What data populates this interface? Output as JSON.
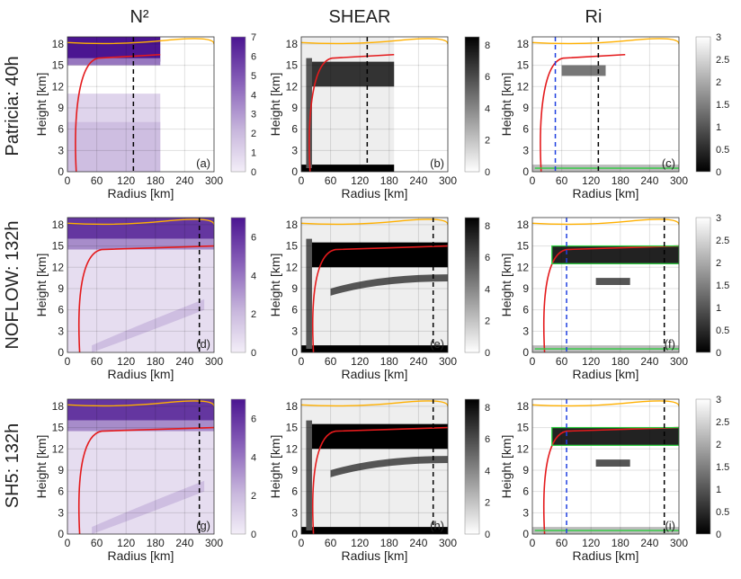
{
  "column_titles": [
    "N²",
    "SHEAR",
    "Ri"
  ],
  "row_titles": [
    "Patricia: 40h",
    "NOFLOW: 132h",
    "SH5: 132h"
  ],
  "panel_letters": [
    "(a)",
    "(b)",
    "(c)",
    "(d)",
    "(e)",
    "(f)",
    "(g)",
    "(h)",
    "(i)"
  ],
  "colors": {
    "n2_low": "#f3eef8",
    "n2_high": "#4b1591",
    "shear_low": "#ffffff",
    "shear_high": "#000000",
    "ri_low": "#000000",
    "ri_high": "#ffffff",
    "red_contour": "#e41a1c",
    "orange_contour": "#ffb000",
    "green_contour": "#2ecc40",
    "black_dash": "#000000",
    "blue_dash": "#1f3fe0"
  },
  "chart_data": [
    {
      "panel": "(a)",
      "type": "heatmap",
      "field": "N²",
      "row": "Patricia: 40h",
      "xlabel": "Radius [km]",
      "ylabel": "Height [km]",
      "x_ticks": [
        "0",
        "60",
        "120",
        "180",
        "240",
        "300"
      ],
      "y_ticks": [
        "0",
        "3",
        "6",
        "9",
        "12",
        "15",
        "18"
      ],
      "xlim": [
        0,
        300
      ],
      "ylim": [
        0,
        19
      ],
      "grid": true,
      "colorbar": {
        "ticks": [
          "0",
          "1",
          "2",
          "3",
          "4",
          "5",
          "6",
          "7"
        ],
        "range": [
          0,
          7
        ]
      },
      "data_extent_km": 190,
      "dashed_lines_km": [
        {
          "x": 135,
          "color": "black"
        }
      ]
    },
    {
      "panel": "(b)",
      "type": "heatmap",
      "field": "SHEAR",
      "row": "Patricia: 40h",
      "xlabel": "Radius [km]",
      "ylabel": "Height [km]",
      "x_ticks": [
        "0",
        "60",
        "120",
        "180",
        "240",
        "300"
      ],
      "y_ticks": [
        "0",
        "3",
        "6",
        "9",
        "12",
        "15",
        "18"
      ],
      "xlim": [
        0,
        300
      ],
      "ylim": [
        0,
        19
      ],
      "grid": true,
      "colorbar": {
        "ticks": [
          "0",
          "2",
          "4",
          "6",
          "8"
        ],
        "range": [
          0,
          8.5
        ]
      },
      "data_extent_km": 190,
      "dashed_lines_km": [
        {
          "x": 135,
          "color": "black"
        }
      ]
    },
    {
      "panel": "(c)",
      "type": "heatmap",
      "field": "Ri",
      "row": "Patricia: 40h",
      "xlabel": "Radius [km]",
      "ylabel": "Height [km]",
      "x_ticks": [
        "0",
        "60",
        "120",
        "180",
        "240",
        "300"
      ],
      "y_ticks": [
        "0",
        "3",
        "6",
        "9",
        "12",
        "15",
        "18"
      ],
      "xlim": [
        0,
        300
      ],
      "ylim": [
        0,
        19
      ],
      "grid": true,
      "colorbar": {
        "ticks": [
          "0",
          "0.5",
          "1",
          "1.5",
          "2",
          "2.5",
          "3"
        ],
        "range": [
          0,
          3
        ]
      },
      "data_extent_km": 190,
      "dashed_lines_km": [
        {
          "x": 47,
          "color": "blue"
        },
        {
          "x": 135,
          "color": "black"
        }
      ]
    },
    {
      "panel": "(d)",
      "type": "heatmap",
      "field": "N²",
      "row": "NOFLOW: 132h",
      "xlabel": "Radius [km]",
      "ylabel": "Height [km]",
      "x_ticks": [
        "0",
        "60",
        "120",
        "180",
        "240",
        "300"
      ],
      "y_ticks": [
        "0",
        "3",
        "6",
        "9",
        "12",
        "15",
        "18"
      ],
      "xlim": [
        0,
        300
      ],
      "ylim": [
        0,
        19
      ],
      "grid": true,
      "colorbar": {
        "ticks": [
          "0",
          "2",
          "4",
          "6"
        ],
        "range": [
          0,
          7
        ]
      },
      "data_extent_km": 300,
      "dashed_lines_km": [
        {
          "x": 270,
          "color": "black"
        }
      ]
    },
    {
      "panel": "(e)",
      "type": "heatmap",
      "field": "SHEAR",
      "row": "NOFLOW: 132h",
      "xlabel": "Radius [km]",
      "ylabel": "Height [km]",
      "x_ticks": [
        "0",
        "60",
        "120",
        "180",
        "240",
        "300"
      ],
      "y_ticks": [
        "0",
        "3",
        "6",
        "9",
        "12",
        "15",
        "18"
      ],
      "xlim": [
        0,
        300
      ],
      "ylim": [
        0,
        19
      ],
      "grid": true,
      "colorbar": {
        "ticks": [
          "0",
          "2",
          "4",
          "6",
          "8"
        ],
        "range": [
          0,
          8.5
        ]
      },
      "data_extent_km": 300,
      "dashed_lines_km": [
        {
          "x": 270,
          "color": "black"
        }
      ]
    },
    {
      "panel": "(f)",
      "type": "heatmap",
      "field": "Ri",
      "row": "NOFLOW: 132h",
      "xlabel": "Radius [km]",
      "ylabel": "Height [km]",
      "x_ticks": [
        "0",
        "60",
        "120",
        "180",
        "240",
        "300"
      ],
      "y_ticks": [
        "0",
        "3",
        "6",
        "9",
        "12",
        "15",
        "18"
      ],
      "xlim": [
        0,
        300
      ],
      "ylim": [
        0,
        19
      ],
      "grid": true,
      "colorbar": {
        "ticks": [
          "0",
          "0.5",
          "1",
          "1.5",
          "2",
          "2.5",
          "3"
        ],
        "range": [
          0,
          3
        ]
      },
      "data_extent_km": 300,
      "dashed_lines_km": [
        {
          "x": 70,
          "color": "blue"
        },
        {
          "x": 270,
          "color": "black"
        }
      ]
    },
    {
      "panel": "(g)",
      "type": "heatmap",
      "field": "N²",
      "row": "SH5: 132h",
      "xlabel": "Radius [km]",
      "ylabel": "Height [km]",
      "x_ticks": [
        "0",
        "60",
        "120",
        "180",
        "240",
        "300"
      ],
      "y_ticks": [
        "0",
        "3",
        "6",
        "9",
        "12",
        "15",
        "18"
      ],
      "xlim": [
        0,
        300
      ],
      "ylim": [
        0,
        19
      ],
      "grid": true,
      "colorbar": {
        "ticks": [
          "0",
          "2",
          "4",
          "6"
        ],
        "range": [
          0,
          7
        ]
      },
      "data_extent_km": 300,
      "dashed_lines_km": [
        {
          "x": 270,
          "color": "black"
        }
      ]
    },
    {
      "panel": "(h)",
      "type": "heatmap",
      "field": "SHEAR",
      "row": "SH5: 132h",
      "xlabel": "Radius [km]",
      "ylabel": "Height [km]",
      "x_ticks": [
        "0",
        "60",
        "120",
        "180",
        "240",
        "300"
      ],
      "y_ticks": [
        "0",
        "3",
        "6",
        "9",
        "12",
        "15",
        "18"
      ],
      "xlim": [
        0,
        300
      ],
      "ylim": [
        0,
        19
      ],
      "grid": true,
      "colorbar": {
        "ticks": [
          "0",
          "2",
          "4",
          "6",
          "8"
        ],
        "range": [
          0,
          8.5
        ]
      },
      "data_extent_km": 300,
      "dashed_lines_km": [
        {
          "x": 270,
          "color": "black"
        }
      ]
    },
    {
      "panel": "(i)",
      "type": "heatmap",
      "field": "Ri",
      "row": "SH5: 132h",
      "xlabel": "Radius [km]",
      "ylabel": "Height [km]",
      "x_ticks": [
        "0",
        "60",
        "120",
        "180",
        "240",
        "300"
      ],
      "y_ticks": [
        "0",
        "3",
        "6",
        "9",
        "12",
        "15",
        "18"
      ],
      "xlim": [
        0,
        300
      ],
      "ylim": [
        0,
        19
      ],
      "grid": true,
      "colorbar": {
        "ticks": [
          "0",
          "0.5",
          "1",
          "1.5",
          "2",
          "2.5",
          "3"
        ],
        "range": [
          0,
          3
        ]
      },
      "data_extent_km": 300,
      "dashed_lines_km": [
        {
          "x": 70,
          "color": "blue"
        },
        {
          "x": 270,
          "color": "black"
        }
      ]
    }
  ]
}
